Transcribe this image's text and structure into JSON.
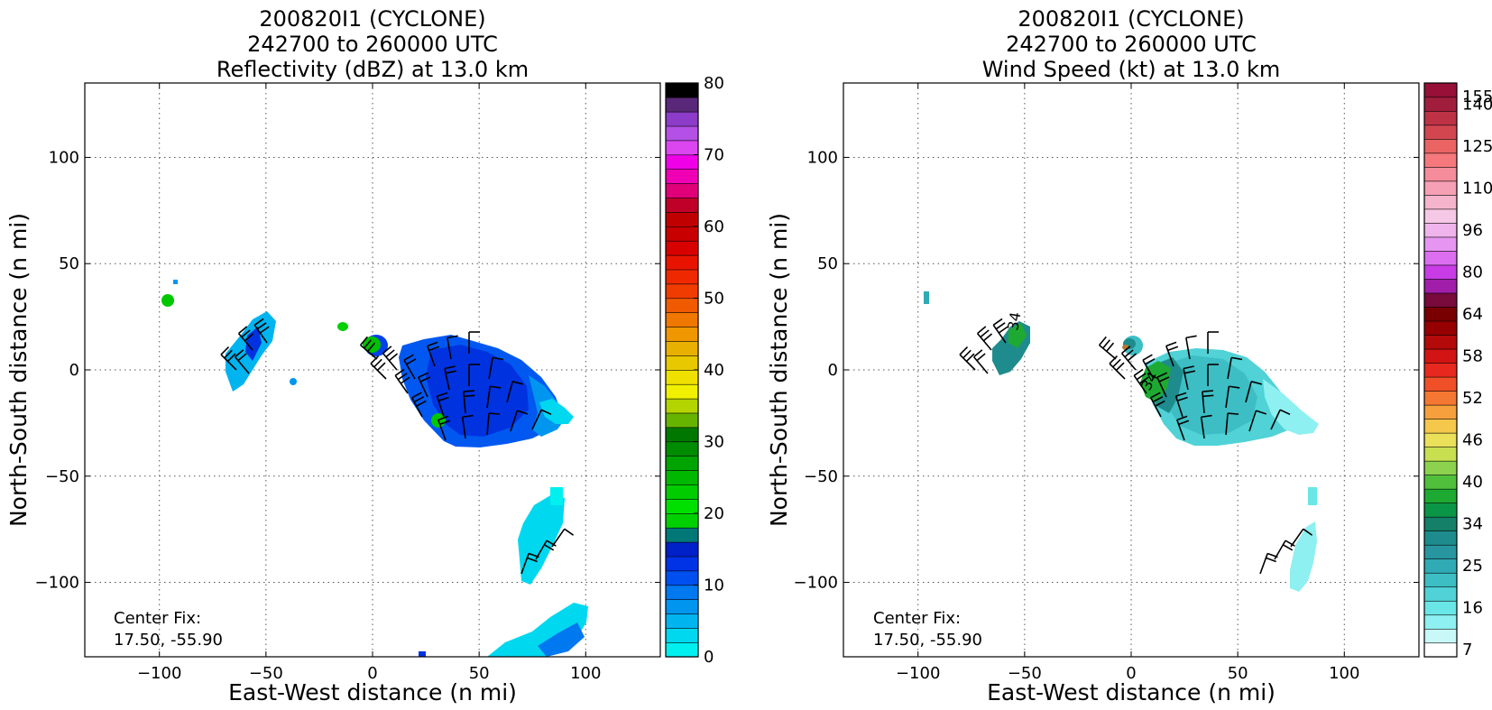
{
  "chart_data": [
    {
      "type": "heatmap",
      "title": [
        "200820I1 (CYCLONE)",
        "242700 to 260000 UTC",
        "Reflectivity (dBZ) at 13.0 km"
      ],
      "xlabel": "East-West distance (n mi)",
      "ylabel": "North-South distance (n mi)",
      "xlim": [
        -135,
        135
      ],
      "ylim": [
        -135,
        135
      ],
      "xticks": [
        -100,
        -50,
        0,
        50,
        100
      ],
      "yticks": [
        -100,
        -50,
        0,
        50,
        100
      ],
      "grid": true,
      "center_fix": {
        "label": "Center Fix:",
        "value": "17.50, -55.90"
      },
      "colorbar": {
        "min": 0,
        "max": 80,
        "ticks": [
          "0",
          "10",
          "20",
          "30",
          "40",
          "50",
          "60",
          "70",
          "80"
        ],
        "colors": [
          "#00f0f0",
          "#00d8f0",
          "#00b4f0",
          "#0096f0",
          "#0078f0",
          "#0050f0",
          "#0032e6",
          "#0020c8",
          "#007878",
          "#00d000",
          "#00e000",
          "#00cc00",
          "#00b800",
          "#00a400",
          "#008c00",
          "#007800",
          "#66b400",
          "#b4d400",
          "#f0f000",
          "#f0e000",
          "#e8c800",
          "#e8b000",
          "#f09600",
          "#f07800",
          "#f05a00",
          "#f03c00",
          "#f02800",
          "#e81400",
          "#d80000",
          "#c80000",
          "#c00000",
          "#c00028",
          "#e00078",
          "#f000b4",
          "#f000e6",
          "#dc46f0",
          "#b450e6",
          "#8c3cc8",
          "#5a2878",
          "#000000"
        ]
      },
      "regions": [
        {
          "name": "main-cell",
          "x": [
            10,
            95
          ],
          "y": [
            -38,
            12
          ],
          "dbz": 8
        },
        {
          "name": "main-cell-edge",
          "x": [
            55,
            95
          ],
          "y": [
            -30,
            -5
          ],
          "dbz": 2
        },
        {
          "name": "west-cell",
          "x": [
            -70,
            -45
          ],
          "y": [
            -5,
            25
          ],
          "dbz": 3
        },
        {
          "name": "small-cell-0",
          "x": [
            -3,
            8
          ],
          "y": [
            5,
            18
          ],
          "dbz": 22
        },
        {
          "name": "small-cell-w",
          "x": [
            -100,
            -93
          ],
          "y": [
            28,
            36
          ],
          "dbz": 22
        },
        {
          "name": "south-band",
          "x": [
            60,
            95
          ],
          "y": [
            -118,
            -55
          ],
          "dbz": 2
        },
        {
          "name": "south-bottom",
          "x": [
            50,
            100
          ],
          "y": [
            -135,
            -108
          ],
          "dbz": 3
        }
      ]
    },
    {
      "type": "heatmap",
      "title": [
        "200820I1 (CYCLONE)",
        "242700 to 260000 UTC",
        "Wind Speed (kt) at 13.0 km"
      ],
      "xlabel": "East-West distance (n mi)",
      "ylabel": "North-South distance (n mi)",
      "xlim": [
        -135,
        135
      ],
      "ylim": [
        -135,
        135
      ],
      "xticks": [
        -100,
        -50,
        0,
        50,
        100
      ],
      "yticks": [
        -100,
        -50,
        0,
        50,
        100
      ],
      "grid": true,
      "center_fix": {
        "label": "Center Fix:",
        "value": "17.50, -55.90"
      },
      "contour_labels": [
        {
          "text": "34",
          "x": -52,
          "y": 17
        },
        {
          "text": "34",
          "x": 11,
          "y": -5
        }
      ],
      "colorbar": {
        "ticks": [
          "7",
          "16",
          "25",
          "34",
          "40",
          "46",
          "52",
          "58",
          "64",
          "80",
          "96",
          "110",
          "125",
          "140",
          "155"
        ],
        "colors": [
          "#ffffff",
          "#c8f8f8",
          "#8ef0f0",
          "#6ae6e6",
          "#50d2d6",
          "#3cbec4",
          "#30aab4",
          "#2896a0",
          "#1e8c8c",
          "#148068",
          "#0a9646",
          "#1eaa32",
          "#50c03c",
          "#8cd24e",
          "#c8e050",
          "#ebe05a",
          "#f5c84b",
          "#f5a03c",
          "#f57832",
          "#f05028",
          "#e6281e",
          "#d21414",
          "#b40a0a",
          "#960000",
          "#780000",
          "#780a3c",
          "#a01eaa",
          "#c83ce6",
          "#dc6ef0",
          "#e696f0",
          "#f0b4ec",
          "#f5c8e6",
          "#f5b4cc",
          "#f5a0b4",
          "#f58c9b",
          "#f5787d",
          "#eb6464",
          "#d24650",
          "#be3246",
          "#a01e3c",
          "#961038"
        ]
      },
      "regions": [
        {
          "name": "main-cell",
          "x": [
            10,
            88
          ],
          "y": [
            -36,
            10
          ],
          "kt": 20
        },
        {
          "name": "main-cell-edge",
          "x": [
            50,
            88
          ],
          "y": [
            -30,
            -5
          ],
          "kt": 13
        },
        {
          "name": "west-cell",
          "x": [
            -70,
            -47
          ],
          "y": [
            -5,
            22
          ],
          "kt": 27
        },
        {
          "name": "small-cell-0",
          "x": [
            -3,
            7
          ],
          "y": [
            8,
            17
          ],
          "kt": 28
        },
        {
          "name": "small-cell-w",
          "x": [
            -98,
            -95
          ],
          "y": [
            31,
            36
          ],
          "kt": 21
        },
        {
          "name": "south-band",
          "x": [
            70,
            85
          ],
          "y": [
            -102,
            -55
          ],
          "kt": 11
        }
      ]
    }
  ]
}
